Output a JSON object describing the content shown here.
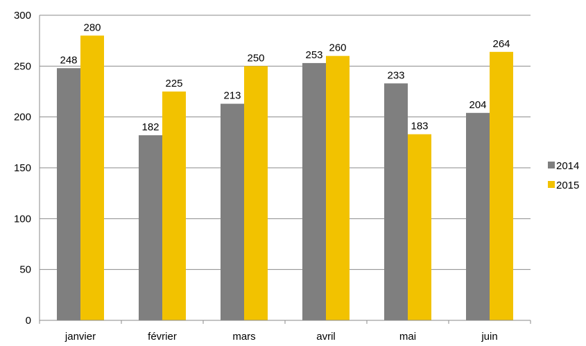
{
  "chart_data": {
    "type": "bar",
    "categories": [
      "janvier",
      "février",
      "mars",
      "avril",
      "mai",
      "juin"
    ],
    "series": [
      {
        "name": "2014",
        "values": [
          248,
          182,
          213,
          253,
          233,
          204
        ],
        "color": "#7f7f7f"
      },
      {
        "name": "2015",
        "values": [
          280,
          225,
          250,
          260,
          183,
          264
        ],
        "color": "#f2c200"
      }
    ],
    "y_ticks": [
      "0",
      "50",
      "100",
      "150",
      "200",
      "250",
      "300"
    ],
    "ylim": [
      0,
      300
    ],
    "grid": true,
    "legend_position": "right",
    "title": "",
    "xlabel": "",
    "ylabel": ""
  }
}
